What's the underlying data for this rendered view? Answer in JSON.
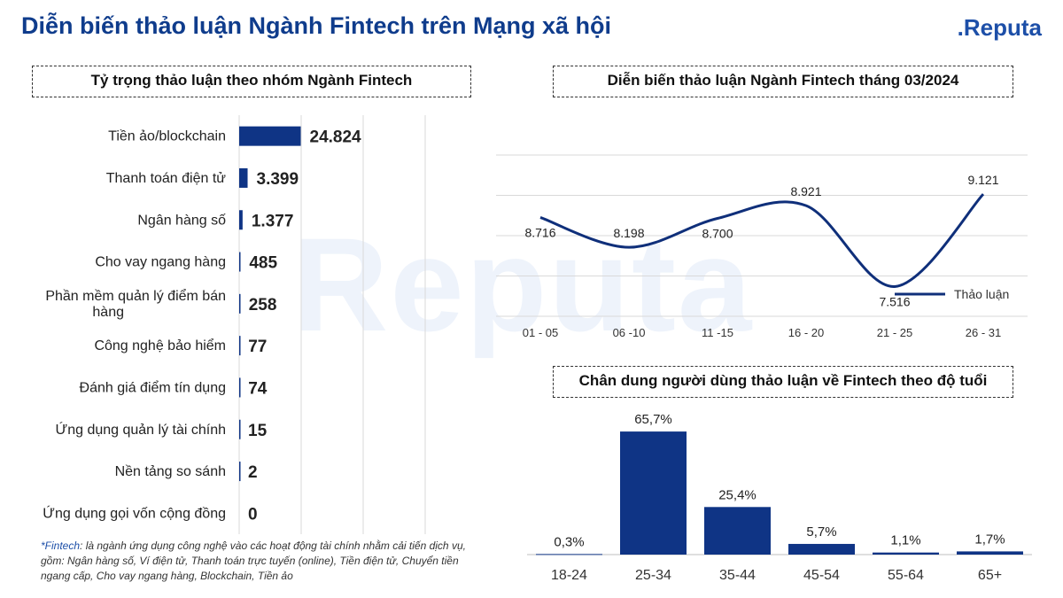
{
  "header": {
    "title": "Diễn biến thảo luận Ngành Fintech trên Mạng xã hội",
    "brand_dot": ".",
    "brand_text": "Reputa"
  },
  "watermark": "Reputa",
  "footnote": {
    "label": "*Fintech",
    "text": ": là ngành ứng dụng công nghệ vào các hoạt động tài chính nhằm cải tiến dịch vụ, gồm: Ngân hàng số, Ví điện tử, Thanh toán trực tuyến (online), Tiền điện tử, Chuyển tiền ngang cấp, Cho vay ngang hàng, Blockchain, Tiền ảo"
  },
  "colors": {
    "bar": "#0f3485",
    "line": "#0f2f7a",
    "title": "#0f3c8c",
    "grid": "#d9d9d9"
  },
  "chart_data": [
    {
      "type": "bar",
      "orientation": "horizontal",
      "title": "Tỷ trọng thảo luận theo nhóm Ngành Fintech",
      "categories": [
        "Tiền ảo/blockchain",
        "Thanh toán điện tử",
        "Ngân hàng số",
        "Cho vay ngang hàng",
        "Phần mềm quản lý điểm bán hàng",
        "Công nghệ bảo hiểm",
        "Đánh giá điểm tín dụng",
        "Ứng dụng quản lý tài chính",
        "Nền tảng so sánh",
        "Ứng dụng gọi vốn cộng đồng"
      ],
      "values": [
        24824,
        3399,
        1377,
        485,
        258,
        77,
        74,
        15,
        2,
        0
      ],
      "labels": [
        "24.824",
        "3.399",
        "1.377",
        "485",
        "258",
        "77",
        "74",
        "15",
        "2",
        "0"
      ],
      "xlim": [
        0,
        75000
      ],
      "grid": true
    },
    {
      "type": "line",
      "title": "Diễn biến thảo luận Ngành Fintech tháng 03/2024",
      "categories": [
        "01 - 05",
        "06 -10",
        "11 -15",
        "16 - 20",
        "21 - 25",
        "26 - 31"
      ],
      "series": [
        {
          "name": "Thảo luận",
          "values": [
            8716,
            8198,
            8700,
            8921,
            7516,
            9121
          ],
          "labels": [
            "8.716",
            "8.198",
            "8.700",
            "8.921",
            "7.516",
            "9.121"
          ]
        }
      ],
      "legend": "bottom-right",
      "grid": true
    },
    {
      "type": "bar",
      "title": "Chân dung người dùng thảo luận về Fintech theo độ tuổi",
      "categories": [
        "18-24",
        "25-34",
        "35-44",
        "45-54",
        "55-64",
        "65+"
      ],
      "values": [
        0.3,
        65.7,
        25.4,
        5.7,
        1.1,
        1.7
      ],
      "labels": [
        "0,3%",
        "65,7%",
        "25,4%",
        "5,7%",
        "1,1%",
        "1,7%"
      ],
      "ylim": [
        0,
        70
      ]
    }
  ]
}
